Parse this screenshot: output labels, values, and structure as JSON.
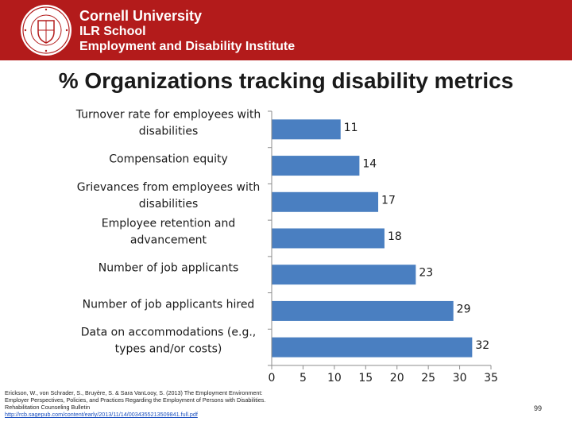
{
  "header": {
    "line1": "Cornell University",
    "line2": "ILR School",
    "line3": "Employment and Disability Institute",
    "bg_color": "#b31b1b"
  },
  "chart_data": {
    "type": "bar",
    "orientation": "horizontal",
    "title": "% Organizations tracking disability metrics",
    "categories": [
      [
        "Turnover rate for employees with",
        "disabilities"
      ],
      [
        "Compensation equity"
      ],
      [
        "Grievances from employees with",
        "disabilities"
      ],
      [
        "Employee retention and",
        "advancement"
      ],
      [
        "Number of job applicants"
      ],
      [
        "Number of job applicants hired"
      ],
      [
        "Data on accommodations (e.g.,",
        "types and/or costs)"
      ]
    ],
    "values": [
      11,
      14,
      17,
      18,
      23,
      29,
      32
    ],
    "xlim": [
      0,
      35
    ],
    "xticks": [
      0,
      5,
      10,
      15,
      20,
      25,
      30,
      35
    ],
    "bar_color": "#4a7fc1",
    "xlabel": "",
    "ylabel": "",
    "grid": false,
    "legend": "none"
  },
  "footer": {
    "citation": "Erickson, W., von Schrader, S., Bruyère, S. & Sara VanLooy, S. (2013) The Employment Environment: Employer Perspectives, Policies, and Practices Regarding the Employment of Persons with Disabilities. Rehabilitation Counseling Bulletin",
    "link": "http://rcb.sagepub.com/content/early/2013/11/14/0034355213509841.full.pdf",
    "page_number": "99"
  }
}
